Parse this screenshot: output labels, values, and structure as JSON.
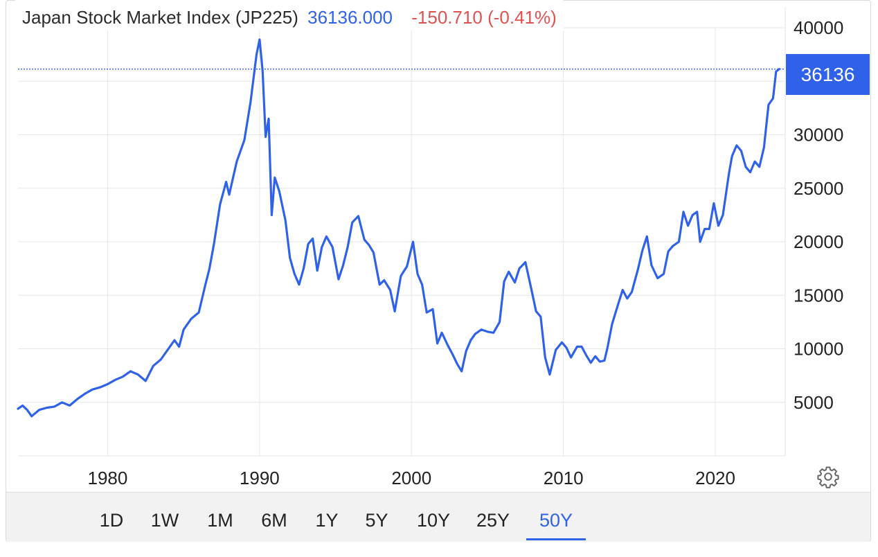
{
  "header": {
    "title": "Japan Stock Market Index (JP225)",
    "last": "36136.000",
    "change": "-150.710 (-0.41%)"
  },
  "price_badge": "36136",
  "settings_icon": "gear-icon",
  "range_buttons": [
    {
      "label": "1D",
      "active": false
    },
    {
      "label": "1W",
      "active": false
    },
    {
      "label": "1M",
      "active": false
    },
    {
      "label": "6M",
      "active": false
    },
    {
      "label": "1Y",
      "active": false
    },
    {
      "label": "5Y",
      "active": false
    },
    {
      "label": "10Y",
      "active": false
    },
    {
      "label": "25Y",
      "active": false
    },
    {
      "label": "50Y",
      "active": true
    }
  ],
  "colors": {
    "line": "#2f62e8",
    "badge": "#2f62e8",
    "change_negative": "#e05252",
    "grid": "#e6e6e6"
  },
  "chart_data": {
    "type": "line",
    "title": "",
    "xlabel": "",
    "ylabel": "",
    "y_axis_position": "right",
    "x_ticks": [
      1980,
      1990,
      2000,
      2010,
      2020
    ],
    "y_ticks": [
      5000,
      10000,
      15000,
      20000,
      25000,
      30000,
      35000,
      40000
    ],
    "y_tick_labels": [
      "5000",
      "10000",
      "15000",
      "20000",
      "25000",
      "30000",
      "",
      "40000"
    ],
    "xlim": [
      1974.1,
      2024.6
    ],
    "ylim": [
      0,
      40000
    ],
    "grid": true,
    "last_value_line": 36136,
    "series": [
      {
        "name": "",
        "x": [
          1974.1,
          1974.4,
          1974.7,
          1975.0,
          1975.5,
          1976.0,
          1976.5,
          1977.0,
          1977.5,
          1978.0,
          1978.5,
          1979.0,
          1979.5,
          1980.0,
          1980.5,
          1981.0,
          1981.5,
          1982.0,
          1982.5,
          1983.0,
          1983.5,
          1984.0,
          1984.4,
          1984.7,
          1985.0,
          1985.5,
          1986.0,
          1986.4,
          1986.7,
          1987.0,
          1987.4,
          1987.8,
          1988.0,
          1988.5,
          1989.0,
          1989.4,
          1989.8,
          1990.0,
          1990.2,
          1990.4,
          1990.6,
          1990.8,
          1991.0,
          1991.3,
          1991.7,
          1992.0,
          1992.3,
          1992.6,
          1992.9,
          1993.2,
          1993.5,
          1993.8,
          1994.1,
          1994.4,
          1994.8,
          1995.2,
          1995.5,
          1995.8,
          1996.1,
          1996.5,
          1996.9,
          1997.2,
          1997.5,
          1997.9,
          1998.2,
          1998.6,
          1998.9,
          1999.3,
          1999.7,
          2000.1,
          2000.4,
          2000.7,
          2001.0,
          2001.4,
          2001.7,
          2002.0,
          2002.4,
          2002.7,
          2003.0,
          2003.3,
          2003.6,
          2003.9,
          2004.2,
          2004.6,
          2005.0,
          2005.4,
          2005.8,
          2006.1,
          2006.4,
          2006.8,
          2007.1,
          2007.5,
          2007.9,
          2008.2,
          2008.5,
          2008.8,
          2009.1,
          2009.5,
          2009.9,
          2010.2,
          2010.5,
          2010.9,
          2011.2,
          2011.5,
          2011.8,
          2012.1,
          2012.4,
          2012.7,
          2012.9,
          2013.2,
          2013.5,
          2013.9,
          2014.2,
          2014.5,
          2014.9,
          2015.2,
          2015.5,
          2015.8,
          2016.2,
          2016.6,
          2016.9,
          2017.2,
          2017.6,
          2017.9,
          2018.2,
          2018.5,
          2018.8,
          2019.0,
          2019.3,
          2019.6,
          2019.9,
          2020.2,
          2020.5,
          2020.9,
          2021.1,
          2021.4,
          2021.7,
          2022.0,
          2022.3,
          2022.6,
          2022.9,
          2023.2,
          2023.5,
          2023.8,
          2024.0,
          2024.2
        ],
        "y": [
          4400,
          4700,
          4300,
          3700,
          4300,
          4500,
          4600,
          5000,
          4700,
          5300,
          5800,
          6200,
          6400,
          6700,
          7100,
          7400,
          7900,
          7600,
          7000,
          8400,
          9000,
          10000,
          10800,
          10200,
          11800,
          12800,
          13400,
          15800,
          17500,
          19800,
          23500,
          25600,
          24400,
          27500,
          29500,
          33000,
          37500,
          38900,
          36000,
          29800,
          31500,
          22500,
          26000,
          24700,
          22000,
          18500,
          17000,
          16000,
          17500,
          19800,
          20300,
          17300,
          19500,
          20500,
          19500,
          16500,
          17800,
          19500,
          21800,
          22400,
          20200,
          19700,
          19000,
          16000,
          16400,
          15500,
          13500,
          16800,
          17700,
          20000,
          17000,
          16000,
          13400,
          13700,
          10500,
          11500,
          10300,
          9500,
          8600,
          7900,
          9800,
          10800,
          11400,
          11800,
          11600,
          11500,
          12500,
          16300,
          17200,
          16200,
          17500,
          18100,
          15500,
          13500,
          13000,
          9200,
          7600,
          9900,
          10600,
          10100,
          9200,
          10200,
          10200,
          9400,
          8700,
          9300,
          8800,
          8900,
          10100,
          12300,
          13700,
          15500,
          14700,
          15300,
          17400,
          19200,
          20500,
          17800,
          16600,
          17000,
          19100,
          19600,
          20000,
          22800,
          21500,
          22500,
          22800,
          20000,
          21200,
          21200,
          23600,
          21500,
          22500,
          26400,
          28000,
          29000,
          28500,
          27000,
          26500,
          27500,
          27000,
          28800,
          32800,
          33400,
          35900,
          36136
        ]
      }
    ]
  }
}
